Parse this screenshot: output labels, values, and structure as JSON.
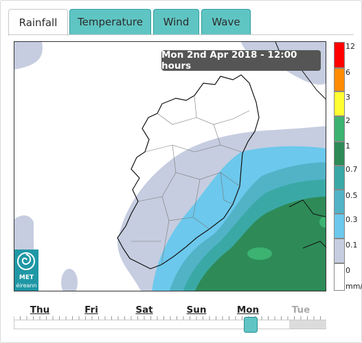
{
  "tabs": [
    {
      "label": "Rainfall",
      "active": true
    },
    {
      "label": "Temperature",
      "active": false
    },
    {
      "label": "Wind",
      "active": false
    },
    {
      "label": "Wave",
      "active": false
    }
  ],
  "map": {
    "timestamp": "Mon 2nd Apr 2018 - 12:00 hours",
    "logo": {
      "line1": "MET",
      "line2": "éireann"
    }
  },
  "legend": {
    "unit": "mm/",
    "items": [
      {
        "label": "12",
        "color": "#ff0000"
      },
      {
        "label": "6",
        "color": "#ff8c00"
      },
      {
        "label": "3",
        "color": "#ffff33"
      },
      {
        "label": "2",
        "color": "#3cb371"
      },
      {
        "label": "1",
        "color": "#2e8b57"
      },
      {
        "label": "0.7",
        "color": "#3aa9a6"
      },
      {
        "label": "0.5",
        "color": "#52b3c7"
      },
      {
        "label": "0.3",
        "color": "#6cc8ec"
      },
      {
        "label": "0.1",
        "color": "#c6cde0"
      },
      {
        "label": "0",
        "color": "#ffffff"
      }
    ]
  },
  "timeline": {
    "days": [
      {
        "label": "Thu",
        "future": false
      },
      {
        "label": "Fri",
        "future": false
      },
      {
        "label": "Sat",
        "future": false
      },
      {
        "label": "Sun",
        "future": false
      },
      {
        "label": "Mon",
        "future": false
      },
      {
        "label": "Tue",
        "future": true
      }
    ]
  }
}
